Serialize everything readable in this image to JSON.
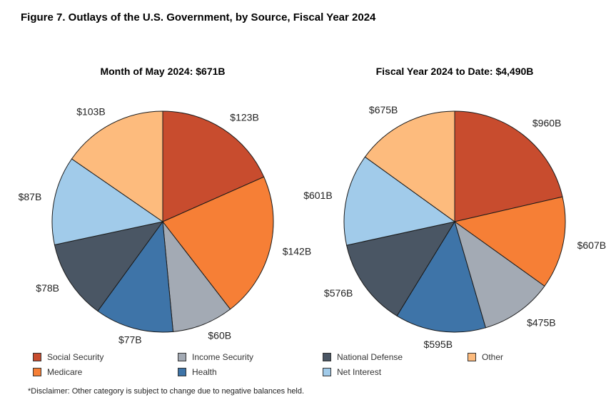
{
  "figure": {
    "title": "Figure 7. Outlays of the U.S. Government, by Source, Fiscal Year 2024",
    "disclaimer": "*Disclaimer: Other category is subject to change due to negative balances held."
  },
  "colors": {
    "Social Security": "#c84c2e",
    "Medicare": "#f67f36",
    "Income Security": "#a3aab4",
    "Health": "#3e74a8",
    "National Defense": "#4a5664",
    "Net Interest": "#a1cbea",
    "Other": "#fdbb7d"
  },
  "legend": {
    "items": [
      "Social Security",
      "Medicare",
      "Income Security",
      "Health",
      "National Defense",
      "Net Interest",
      "Other"
    ]
  },
  "chart_data": [
    {
      "type": "pie",
      "title": "Month of May 2024: $671B",
      "labels": [
        "Social Security",
        "Medicare",
        "Income Security",
        "Health",
        "National Defense",
        "Net Interest",
        "Other"
      ],
      "values": [
        123,
        142,
        60,
        77,
        78,
        87,
        103
      ],
      "value_labels": [
        "$123B",
        "$142B",
        "$60B",
        "$77B",
        "$78B",
        "$87B",
        "$103B"
      ],
      "start_angle": "12 o'clock",
      "direction": "clockwise"
    },
    {
      "type": "pie",
      "title": "Fiscal Year 2024 to Date: $4,490B",
      "labels": [
        "Social Security",
        "Medicare",
        "Income Security",
        "Health",
        "National Defense",
        "Net Interest",
        "Other"
      ],
      "values": [
        960,
        607,
        475,
        595,
        576,
        601,
        675
      ],
      "value_labels": [
        "$960B",
        "$607B",
        "$475B",
        "$595B",
        "$576B",
        "$601B",
        "$675B"
      ],
      "start_angle": "12 o'clock",
      "direction": "clockwise"
    }
  ]
}
